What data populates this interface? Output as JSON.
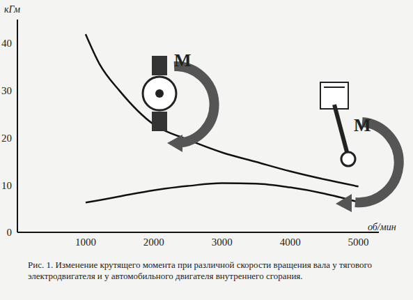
{
  "chart_data": {
    "type": "line",
    "title": "Рис. 1. Изменение крутящего момента при различной скорости вращения вала у тягового электродвигателя и у автомобильного двигателя внутреннего сгорания.",
    "x_label": "об/мин",
    "y_label": "кГм",
    "annotations": [
      "М",
      "М"
    ],
    "x": [
      1000,
      1200,
      1500,
      2000,
      2500,
      3000,
      3500,
      4000,
      4500,
      5000
    ],
    "series": [
      {
        "color": "#111111",
        "values": [
          41.9,
          35.7,
          29.9,
          22.8,
          19.6,
          16.9,
          14.9,
          12.9,
          11.2,
          9.7
        ]
      },
      {
        "color": "#111111",
        "values": [
          6.3,
          6.8,
          7.6,
          8.9,
          9.8,
          10.4,
          10.3,
          9.5,
          8.2,
          6.4
        ]
      }
    ],
    "xlim": [
      0,
      5300
    ],
    "xticks": [
      1000,
      2000,
      3000,
      4000,
      5000
    ],
    "ylim": [
      0,
      45
    ],
    "yticks": [
      0,
      10,
      20,
      30,
      40
    ],
    "grid": false
  }
}
